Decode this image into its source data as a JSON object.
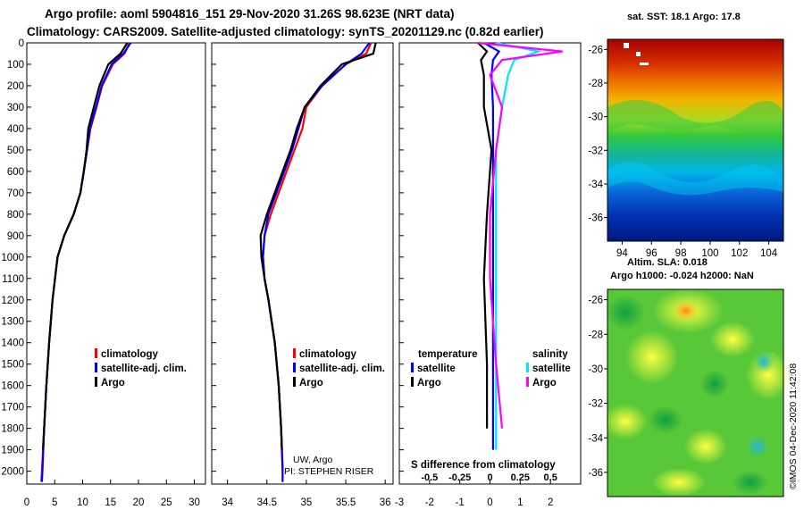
{
  "titles": {
    "line1": "Argo profile: aoml 5904816_151 29-Nov-2020 31.26S 98.623E (NRT data)",
    "line2": "Climatology: CARS2009. Satellite-adjusted climatology: synTS_20201129.nc (0.82d earlier)"
  },
  "colors": {
    "climatology": "#ff0000",
    "satellite": "#0000ff",
    "argo": "#000000",
    "sal_satellite": "#00e5ff",
    "sal_argo": "#ff00ff"
  },
  "credits": {
    "line1": "UW, Argo",
    "line2": "PI: STEPHEN RISER",
    "footer": "©IMOS 04-Dec-2020 11:42:08"
  },
  "chart_data": [
    {
      "type": "line",
      "name": "temperature-profile",
      "xlim": [
        0,
        32
      ],
      "ylim": [
        2060,
        0
      ],
      "x_ticks": [
        "0",
        "5",
        "10",
        "15",
        "20",
        "25",
        "30"
      ],
      "y_ticks": [
        "0",
        "100",
        "200",
        "300",
        "400",
        "500",
        "600",
        "700",
        "800",
        "900",
        "1000",
        "1100",
        "1200",
        "1300",
        "1400",
        "1500",
        "1600",
        "1700",
        "1800",
        "1900",
        "2000"
      ],
      "legend": [
        "climatology",
        "satellite-adj. clim.",
        "Argo"
      ],
      "series": [
        {
          "name": "climatology",
          "depth": [
            0,
            50,
            100,
            200,
            300,
            400,
            500,
            600,
            700,
            800,
            900,
            1000,
            1200,
            1400,
            1600,
            1800,
            2000,
            2050
          ],
          "values": [
            18.4,
            17.5,
            15.4,
            13.5,
            12.5,
            11.4,
            10.8,
            10.2,
            9.6,
            8.4,
            6.7,
            5.5,
            4.6,
            4.0,
            3.5,
            3.1,
            2.7,
            2.6
          ]
        },
        {
          "name": "satellite-adj. clim.",
          "depth": [
            0,
            50,
            100,
            200,
            300,
            400,
            500,
            600,
            700,
            800,
            900,
            1000,
            1200,
            1400,
            1600,
            1800,
            2000,
            2050
          ],
          "values": [
            18.6,
            17.3,
            15.2,
            13.4,
            12.4,
            11.3,
            10.8,
            10.2,
            9.6,
            8.4,
            6.7,
            5.5,
            4.6,
            4.0,
            3.5,
            3.1,
            2.8,
            2.7
          ]
        },
        {
          "name": "Argo",
          "depth": [
            0,
            50,
            100,
            200,
            300,
            400,
            500,
            600,
            700,
            800,
            900,
            1000,
            1200,
            1400,
            1600,
            1800,
            1900
          ],
          "values": [
            18.0,
            16.8,
            14.6,
            13.0,
            12.0,
            11.0,
            10.7,
            10.2,
            9.6,
            8.4,
            6.7,
            5.5,
            4.6,
            4.0,
            3.5,
            3.1,
            2.9
          ]
        }
      ]
    },
    {
      "type": "line",
      "name": "salinity-profile",
      "xlim": [
        33.8,
        36.1
      ],
      "ylim": [
        2060,
        0
      ],
      "x_ticks": [
        "34",
        "34.5",
        "35",
        "35.5",
        "36"
      ],
      "legend": [
        "climatology",
        "satellite-adj. clim.",
        "Argo"
      ],
      "series": [
        {
          "name": "climatology",
          "depth": [
            0,
            50,
            100,
            200,
            300,
            400,
            500,
            600,
            700,
            800,
            900,
            1000,
            1100,
            1200,
            1400,
            1600,
            1800,
            2000,
            2050
          ],
          "values": [
            35.82,
            35.76,
            35.5,
            35.2,
            35.0,
            34.95,
            34.85,
            34.75,
            34.65,
            34.55,
            34.47,
            34.45,
            34.47,
            34.52,
            34.6,
            34.65,
            34.68,
            34.7,
            34.7
          ]
        },
        {
          "name": "satellite-adj. clim.",
          "depth": [
            0,
            50,
            100,
            200,
            300,
            400,
            500,
            600,
            700,
            800,
            900,
            1000,
            1100,
            1200,
            1400,
            1600,
            1800,
            2000,
            2050
          ],
          "values": [
            35.8,
            35.7,
            35.5,
            35.2,
            34.98,
            34.9,
            34.82,
            34.72,
            34.62,
            34.52,
            34.47,
            34.45,
            34.47,
            34.52,
            34.6,
            34.65,
            34.68,
            34.7,
            34.7
          ]
        },
        {
          "name": "Argo",
          "depth": [
            0,
            50,
            100,
            200,
            300,
            400,
            500,
            600,
            700,
            800,
            900,
            1000,
            1100,
            1200,
            1400,
            1600,
            1800,
            1900
          ],
          "values": [
            35.88,
            35.85,
            35.45,
            35.18,
            34.98,
            34.88,
            34.8,
            34.7,
            34.6,
            34.5,
            34.42,
            34.43,
            34.47,
            34.52,
            34.6,
            34.65,
            34.68,
            34.69
          ]
        }
      ]
    },
    {
      "type": "line",
      "name": "difference-from-climatology",
      "xlim": [
        -3,
        3
      ],
      "ylim": [
        2060,
        0
      ],
      "x_ticks": [
        "-3",
        "-2",
        "-1",
        "0",
        "1",
        "2"
      ],
      "x_ticks_salinity": [
        "-0.5",
        "-0.25",
        "0",
        "0.25",
        "0.5"
      ],
      "xlabel_salinity": "S difference from climatology",
      "legend_temperature": {
        "title": "temperature",
        "items": [
          "satellite",
          "Argo"
        ]
      },
      "legend_salinity": {
        "title": "salinity",
        "items": [
          "satellite",
          "Argo"
        ]
      },
      "series": [
        {
          "name": "temperature satellite",
          "depth": [
            0,
            40,
            80,
            150,
            300,
            500,
            800,
            1100,
            1500,
            1900
          ],
          "values": [
            -0.2,
            0.3,
            0.1,
            0.05,
            0.1,
            0.1,
            0.1,
            0.1,
            0.1,
            0.1
          ]
        },
        {
          "name": "temperature Argo",
          "depth": [
            0,
            40,
            80,
            150,
            300,
            500,
            800,
            1100,
            1500,
            1800
          ],
          "values": [
            -0.4,
            -0.1,
            -0.3,
            -0.2,
            -0.2,
            0.05,
            -0.1,
            -0.2,
            -0.1,
            -0.1
          ]
        },
        {
          "name": "salinity satellite",
          "depth": [
            0,
            40,
            80,
            150,
            300,
            500,
            800,
            1100,
            1500,
            1900
          ],
          "values": [
            0.05,
            0.4,
            0.2,
            0.15,
            0.1,
            0.05,
            0.05,
            0.05,
            0.05,
            0.05
          ]
        },
        {
          "name": "salinity Argo",
          "depth": [
            0,
            40,
            80,
            150,
            300,
            500,
            800,
            1100,
            1500,
            1800
          ],
          "values": [
            -0.1,
            0.6,
            0.1,
            0.0,
            0.1,
            0.05,
            0.0,
            0.0,
            0.05,
            0.1
          ]
        }
      ]
    },
    {
      "type": "heatmap",
      "name": "sst-map",
      "title": "sat. SST: 18.1 Argo: 17.8",
      "x_ticks": [
        "94",
        "96",
        "98",
        "100",
        "102",
        "104"
      ],
      "y_ticks": [
        "-26",
        "-28",
        "-30",
        "-32",
        "-34",
        "-36"
      ]
    },
    {
      "type": "heatmap",
      "name": "sla-map",
      "title_line1": "Altim. SLA: 0.018",
      "title_line2": "Argo h1000: -0.024 h2000: NaN",
      "y_ticks": [
        "-26",
        "-28",
        "-30",
        "-32",
        "-34",
        "-36"
      ]
    }
  ]
}
